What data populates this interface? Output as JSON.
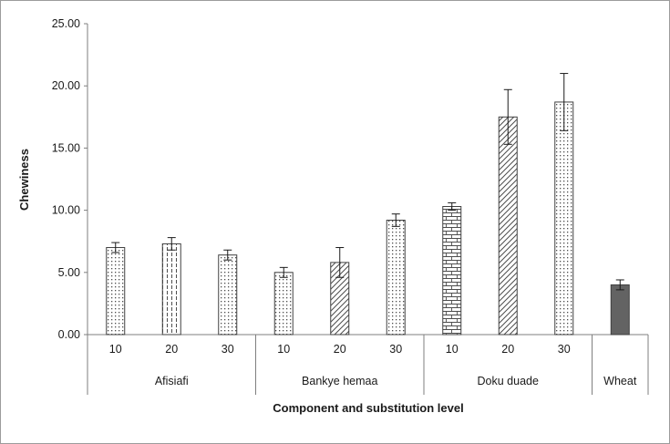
{
  "chart_data": {
    "type": "bar",
    "title": "",
    "xlabel": "Component and substitution level",
    "ylabel": "Chewiness",
    "ylim": [
      0,
      25
    ],
    "ytick_interval": 5,
    "ytick_labels": [
      "0.00",
      "5.00",
      "10.00",
      "15.00",
      "20.00",
      "25.00"
    ],
    "grid": false,
    "legend": "none",
    "error_bars": true,
    "groups": [
      {
        "name": "Afisiafi",
        "bars": [
          {
            "label": "10",
            "value": 7.0,
            "error": 0.4,
            "pattern": "dots"
          },
          {
            "label": "20",
            "value": 7.3,
            "error": 0.5,
            "pattern": "vlines"
          },
          {
            "label": "30",
            "value": 6.4,
            "error": 0.4,
            "pattern": "dots"
          }
        ]
      },
      {
        "name": "Bankye hemaa",
        "bars": [
          {
            "label": "10",
            "value": 5.0,
            "error": 0.4,
            "pattern": "dots"
          },
          {
            "label": "20",
            "value": 5.8,
            "error": 1.2,
            "pattern": "diagonal"
          },
          {
            "label": "30",
            "value": 9.2,
            "error": 0.5,
            "pattern": "dots"
          }
        ]
      },
      {
        "name": "Doku duade",
        "bars": [
          {
            "label": "10",
            "value": 10.3,
            "error": 0.3,
            "pattern": "brick"
          },
          {
            "label": "20",
            "value": 17.5,
            "error": 2.2,
            "pattern": "diagonal"
          },
          {
            "label": "30",
            "value": 18.7,
            "error": 2.3,
            "pattern": "dots"
          }
        ]
      },
      {
        "name": "Wheat",
        "bars": [
          {
            "label": "",
            "value": 4.0,
            "error": 0.4,
            "pattern": "solid"
          }
        ]
      }
    ],
    "colors": {
      "bar_fill": "#ffffff",
      "bar_outline": "#404040",
      "pattern_color": "#4d4d4d",
      "solid_fill": "#636363",
      "axis_color": "#7f7f7f",
      "text_color": "#1a1a1a",
      "error_bar_color": "#1a1a1a"
    }
  }
}
